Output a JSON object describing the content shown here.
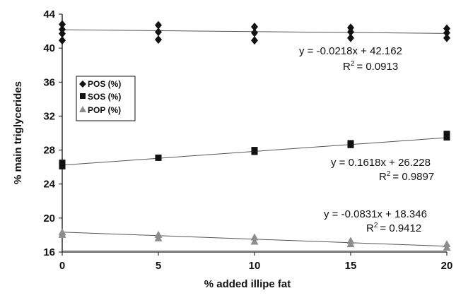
{
  "chart_data": {
    "type": "scatter",
    "xlabel": "% added illipe fat",
    "ylabel": "% main triglycerides",
    "xlim": [
      0,
      20
    ],
    "ylim": [
      16,
      44
    ],
    "x_ticks": [
      "0",
      "5",
      "10",
      "15",
      "20"
    ],
    "y_ticks": [
      "16",
      "20",
      "24",
      "28",
      "32",
      "36",
      "40",
      "44"
    ],
    "legend_position": "left",
    "series": [
      {
        "name": "POS (%)",
        "marker": "diamond",
        "color": "#111111",
        "points": [
          [
            0,
            42.8
          ],
          [
            0,
            42.2
          ],
          [
            0,
            41.7
          ],
          [
            0,
            40.9
          ],
          [
            5,
            42.7
          ],
          [
            5,
            41.9
          ],
          [
            5,
            41.0
          ],
          [
            10,
            42.5
          ],
          [
            10,
            41.8
          ],
          [
            10,
            40.9
          ],
          [
            15,
            42.4
          ],
          [
            15,
            41.9
          ],
          [
            15,
            41.2
          ],
          [
            20,
            42.3
          ],
          [
            20,
            41.8
          ],
          [
            20,
            41.2
          ]
        ],
        "trendline": {
          "slope": -0.0218,
          "intercept": 42.162,
          "equation": "y = -0.0218x + 42.162",
          "r2_label": "R",
          "r2_value": "= 0.0913"
        }
      },
      {
        "name": "SOS (%)",
        "marker": "square",
        "color": "#111111",
        "points": [
          [
            0,
            26.5
          ],
          [
            0,
            26.1
          ],
          [
            5,
            27.1
          ],
          [
            10,
            28.0
          ],
          [
            10,
            27.8
          ],
          [
            15,
            28.8
          ],
          [
            15,
            28.6
          ],
          [
            20,
            29.9
          ],
          [
            20,
            29.5
          ]
        ],
        "trendline": {
          "slope": 0.1618,
          "intercept": 26.228,
          "equation": "y = 0.1618x + 26.228",
          "r2_label": "R",
          "r2_value": "= 0.9897"
        }
      },
      {
        "name": "POP (%)",
        "marker": "triangle",
        "color": "#8c8c8c",
        "points": [
          [
            0,
            18.3
          ],
          [
            0,
            18.0
          ],
          [
            5,
            18.0
          ],
          [
            5,
            17.6
          ],
          [
            10,
            17.7
          ],
          [
            10,
            17.2
          ],
          [
            15,
            17.3
          ],
          [
            15,
            16.9
          ],
          [
            20,
            16.9
          ],
          [
            20,
            16.5
          ]
        ],
        "trendline": {
          "slope": -0.0831,
          "intercept": 18.346,
          "equation": "y = -0.0831x + 18.346",
          "r2_label": "R",
          "r2_value": "= 0.9412"
        }
      }
    ]
  }
}
